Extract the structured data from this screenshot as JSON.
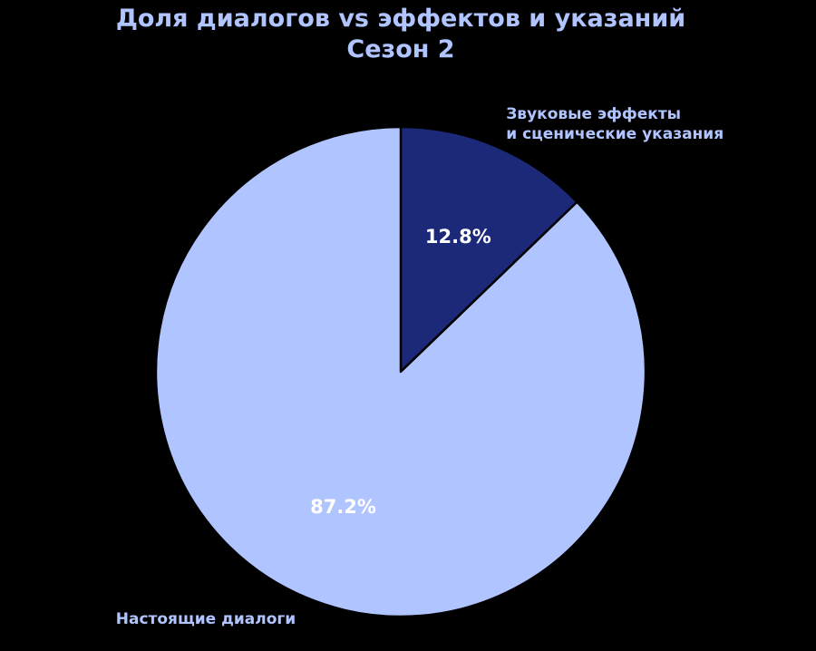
{
  "chart_data": {
    "type": "pie",
    "title": "Доля диалогов vs эффектов и указаний\nСезон 2",
    "categories": [
      "Звуковые эффекты\nи сценические указания",
      "Настоящие диалоги"
    ],
    "values": [
      12.8,
      87.2
    ],
    "value_labels": [
      "12.8%",
      "87.2%"
    ],
    "colors": [
      "#1c2878",
      "#b0c4ff"
    ],
    "start_angle": 90,
    "direction": "clockwise"
  }
}
